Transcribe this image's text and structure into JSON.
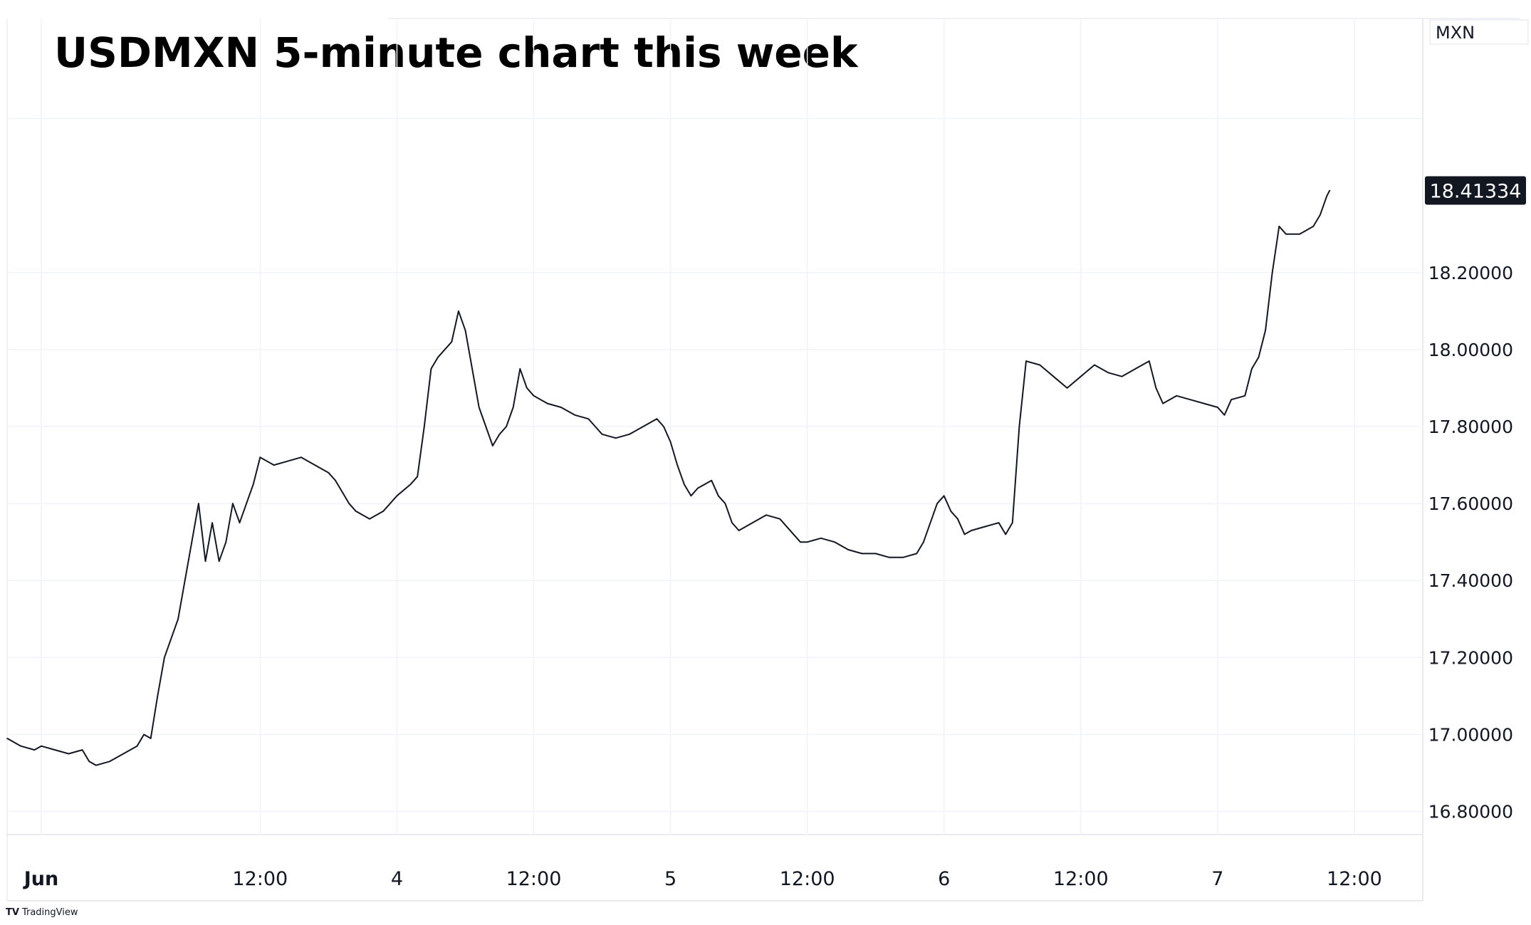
{
  "chart_data": {
    "type": "line",
    "title": "USDMXN 5-minute chart this week",
    "unit": "MXN",
    "last_price": 18.41334,
    "last_price_label": "18.41334",
    "ylim": [
      16.74,
      18.86
    ],
    "y_ticks": [
      {
        "value": 18.2,
        "label": "18.20000"
      },
      {
        "value": 18.0,
        "label": "18.00000"
      },
      {
        "value": 17.8,
        "label": "17.80000"
      },
      {
        "value": 17.6,
        "label": "17.60000"
      },
      {
        "value": 17.4,
        "label": "17.40000"
      },
      {
        "value": 17.2,
        "label": "17.20000"
      },
      {
        "value": 17.0,
        "label": "17.00000"
      },
      {
        "value": 16.8,
        "label": "16.80000"
      }
    ],
    "x_unit": "hours since Jun 3 00:00",
    "xlim": [
      -2.5,
      101.0
    ],
    "x_ticks": [
      {
        "value": 0,
        "label": "Jun",
        "bold": true
      },
      {
        "value": 16,
        "label": "12:00",
        "bold": false
      },
      {
        "value": 26,
        "label": "4",
        "bold": false
      },
      {
        "value": 36,
        "label": "12:00",
        "bold": false
      },
      {
        "value": 46,
        "label": "5",
        "bold": false
      },
      {
        "value": 56,
        "label": "12:00",
        "bold": false
      },
      {
        "value": 66,
        "label": "6",
        "bold": false
      },
      {
        "value": 76,
        "label": "12:00",
        "bold": false
      },
      {
        "value": 86,
        "label": "7",
        "bold": false
      },
      {
        "value": 96,
        "label": "12:00",
        "bold": false
      }
    ],
    "grid": true,
    "series": [
      {
        "name": "USDMXN",
        "color": "#131722",
        "points": [
          [
            -2.5,
            16.99
          ],
          [
            -1.5,
            16.97
          ],
          [
            -0.5,
            16.96
          ],
          [
            0.0,
            16.97
          ],
          [
            1.0,
            16.96
          ],
          [
            2.0,
            16.95
          ],
          [
            3.0,
            16.96
          ],
          [
            3.5,
            16.93
          ],
          [
            4.0,
            16.92
          ],
          [
            5.0,
            16.93
          ],
          [
            6.0,
            16.95
          ],
          [
            7.0,
            16.97
          ],
          [
            7.5,
            17.0
          ],
          [
            8.0,
            16.99
          ],
          [
            8.5,
            17.1
          ],
          [
            9.0,
            17.2
          ],
          [
            10.0,
            17.3
          ],
          [
            10.5,
            17.4
          ],
          [
            11.0,
            17.5
          ],
          [
            11.5,
            17.6
          ],
          [
            12.0,
            17.45
          ],
          [
            12.5,
            17.55
          ],
          [
            13.0,
            17.45
          ],
          [
            13.5,
            17.5
          ],
          [
            14.0,
            17.6
          ],
          [
            14.5,
            17.55
          ],
          [
            15.0,
            17.6
          ],
          [
            15.5,
            17.65
          ],
          [
            16.0,
            17.72
          ],
          [
            17.0,
            17.7
          ],
          [
            18.0,
            17.71
          ],
          [
            19.0,
            17.72
          ],
          [
            20.0,
            17.7
          ],
          [
            21.0,
            17.68
          ],
          [
            21.5,
            17.66
          ],
          [
            22.0,
            17.63
          ],
          [
            22.5,
            17.6
          ],
          [
            23.0,
            17.58
          ],
          [
            24.0,
            17.56
          ],
          [
            25.0,
            17.58
          ],
          [
            26.0,
            17.62
          ],
          [
            27.0,
            17.65
          ],
          [
            27.5,
            17.67
          ],
          [
            28.0,
            17.8
          ],
          [
            28.5,
            17.95
          ],
          [
            29.0,
            17.98
          ],
          [
            30.0,
            18.02
          ],
          [
            30.5,
            18.1
          ],
          [
            31.0,
            18.05
          ],
          [
            31.5,
            17.95
          ],
          [
            32.0,
            17.85
          ],
          [
            32.5,
            17.8
          ],
          [
            33.0,
            17.75
          ],
          [
            33.5,
            17.78
          ],
          [
            34.0,
            17.8
          ],
          [
            34.5,
            17.85
          ],
          [
            35.0,
            17.95
          ],
          [
            35.5,
            17.9
          ],
          [
            36.0,
            17.88
          ],
          [
            37.0,
            17.86
          ],
          [
            38.0,
            17.85
          ],
          [
            39.0,
            17.83
          ],
          [
            40.0,
            17.82
          ],
          [
            40.5,
            17.8
          ],
          [
            41.0,
            17.78
          ],
          [
            42.0,
            17.77
          ],
          [
            43.0,
            17.78
          ],
          [
            44.0,
            17.8
          ],
          [
            45.0,
            17.82
          ],
          [
            45.5,
            17.8
          ],
          [
            46.0,
            17.76
          ],
          [
            46.5,
            17.7
          ],
          [
            47.0,
            17.65
          ],
          [
            47.5,
            17.62
          ],
          [
            48.0,
            17.64
          ],
          [
            49.0,
            17.66
          ],
          [
            49.5,
            17.62
          ],
          [
            50.0,
            17.6
          ],
          [
            50.5,
            17.55
          ],
          [
            51.0,
            17.53
          ],
          [
            52.0,
            17.55
          ],
          [
            53.0,
            17.57
          ],
          [
            54.0,
            17.56
          ],
          [
            55.0,
            17.52
          ],
          [
            55.5,
            17.5
          ],
          [
            56.0,
            17.5
          ],
          [
            57.0,
            17.51
          ],
          [
            58.0,
            17.5
          ],
          [
            59.0,
            17.48
          ],
          [
            60.0,
            17.47
          ],
          [
            61.0,
            17.47
          ],
          [
            62.0,
            17.46
          ],
          [
            63.0,
            17.46
          ],
          [
            64.0,
            17.47
          ],
          [
            64.5,
            17.5
          ],
          [
            65.0,
            17.55
          ],
          [
            65.5,
            17.6
          ],
          [
            66.0,
            17.62
          ],
          [
            66.5,
            17.58
          ],
          [
            67.0,
            17.56
          ],
          [
            67.5,
            17.52
          ],
          [
            68.0,
            17.53
          ],
          [
            69.0,
            17.54
          ],
          [
            70.0,
            17.55
          ],
          [
            70.5,
            17.52
          ],
          [
            71.0,
            17.55
          ],
          [
            71.5,
            17.8
          ],
          [
            72.0,
            17.97
          ],
          [
            73.0,
            17.96
          ],
          [
            74.0,
            17.93
          ],
          [
            75.0,
            17.9
          ],
          [
            76.0,
            17.93
          ],
          [
            77.0,
            17.96
          ],
          [
            78.0,
            17.94
          ],
          [
            79.0,
            17.93
          ],
          [
            80.0,
            17.95
          ],
          [
            81.0,
            17.97
          ],
          [
            81.5,
            17.9
          ],
          [
            82.0,
            17.86
          ],
          [
            83.0,
            17.88
          ],
          [
            84.0,
            17.87
          ],
          [
            85.0,
            17.86
          ],
          [
            86.0,
            17.85
          ],
          [
            86.5,
            17.83
          ],
          [
            87.0,
            17.87
          ],
          [
            88.0,
            17.88
          ],
          [
            88.5,
            17.95
          ],
          [
            89.0,
            17.98
          ],
          [
            89.5,
            18.05
          ],
          [
            90.0,
            18.2
          ],
          [
            90.5,
            18.32
          ],
          [
            91.0,
            18.3
          ],
          [
            92.0,
            18.3
          ],
          [
            93.0,
            18.32
          ],
          [
            93.5,
            18.35
          ],
          [
            94.0,
            18.4
          ],
          [
            94.2,
            18.41334
          ]
        ]
      }
    ]
  },
  "brand": {
    "logo": "TV",
    "name": "TradingView"
  }
}
